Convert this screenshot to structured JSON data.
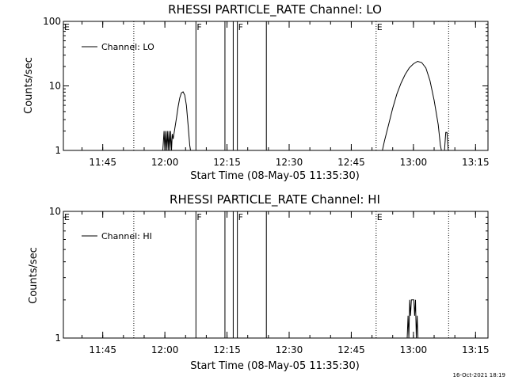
{
  "figure": {
    "timestamp": "16-Oct-2021 18:19",
    "colors": {
      "background": "#ffffff",
      "foreground": "#000000"
    }
  },
  "chart_data": [
    {
      "type": "line",
      "title": "RHESSI PARTICLE_RATE Channel: LO",
      "xlabel": "Start Time (08-May-05 11:35:30)",
      "ylabel": "Counts/sec",
      "yscale": "log",
      "ylim": [
        1,
        100
      ],
      "y_ticks": [
        {
          "v": 1,
          "label": "1"
        },
        {
          "v": 10,
          "label": "10"
        },
        {
          "v": 100,
          "label": "100"
        }
      ],
      "xlim": [
        "11:35:30",
        "13:18:00"
      ],
      "x_ticks": [
        "11:45",
        "12:00",
        "12:15",
        "12:30",
        "12:45",
        "13:00",
        "13:15"
      ],
      "legend": {
        "label": "Channel: LO",
        "placement": "top-left"
      },
      "markers": [
        {
          "label": "E",
          "time": "11:35:30",
          "style": "dotted",
          "line": false
        },
        {
          "label": "",
          "time": "11:52:30",
          "style": "dotted",
          "line": true
        },
        {
          "label": "F",
          "time": "12:07:30",
          "style": "solid",
          "line": true
        },
        {
          "label": "",
          "time": "12:14:30",
          "style": "solid",
          "line": true
        },
        {
          "label": "",
          "time": "12:16:30",
          "style": "solid",
          "line": true
        },
        {
          "label": "F",
          "time": "12:17:30",
          "style": "solid",
          "line": true
        },
        {
          "label": "",
          "time": "12:24:30",
          "style": "solid",
          "line": true
        },
        {
          "label": "E",
          "time": "12:51:00",
          "style": "dotted",
          "line": true
        },
        {
          "label": "",
          "time": "13:08:30",
          "style": "dotted",
          "line": true
        }
      ],
      "series": [
        {
          "points": [
            [
              "11:59:30",
              1
            ],
            [
              "11:59:48",
              2
            ],
            [
              "12:00:00",
              1
            ],
            [
              "12:00:12",
              2
            ],
            [
              "12:00:24",
              1
            ],
            [
              "12:00:36",
              2
            ],
            [
              "12:00:48",
              1
            ],
            [
              "12:01:00",
              2
            ],
            [
              "12:01:12",
              1
            ],
            [
              "12:01:24",
              2
            ],
            [
              "12:01:36",
              1
            ],
            [
              "12:01:48",
              1.8
            ],
            [
              "12:02:00",
              1.5
            ],
            [
              "12:02:24",
              2.2
            ],
            [
              "12:02:48",
              3.2
            ],
            [
              "12:03:12",
              4.8
            ],
            [
              "12:03:36",
              6.5
            ],
            [
              "12:04:00",
              7.8
            ],
            [
              "12:04:24",
              8.1
            ],
            [
              "12:04:48",
              7.2
            ],
            [
              "12:05:12",
              5
            ],
            [
              "12:05:36",
              2.5
            ],
            [
              "12:06:00",
              1.2
            ],
            [
              "12:06:12",
              1
            ]
          ]
        },
        {
          "points": [
            [
              "12:52:30",
              1
            ],
            [
              "12:53:00",
              1.4
            ],
            [
              "12:54:00",
              2.5
            ],
            [
              "12:55:00",
              4.5
            ],
            [
              "12:56:00",
              7.5
            ],
            [
              "12:57:00",
              11
            ],
            [
              "12:58:00",
              15
            ],
            [
              "12:59:00",
              19
            ],
            [
              "13:00:00",
              22
            ],
            [
              "13:01:00",
              24
            ],
            [
              "13:02:00",
              23
            ],
            [
              "13:03:00",
              19
            ],
            [
              "13:04:00",
              12
            ],
            [
              "13:05:00",
              6
            ],
            [
              "13:06:00",
              2.5
            ],
            [
              "13:06:30",
              1.2
            ],
            [
              "13:06:45",
              1
            ]
          ]
        },
        {
          "points": [
            [
              "13:07:30",
              1
            ],
            [
              "13:07:48",
              1.9
            ],
            [
              "13:08:06",
              1.9
            ],
            [
              "13:08:24",
              1
            ]
          ]
        }
      ]
    },
    {
      "type": "line",
      "title": "RHESSI PARTICLE_RATE Channel: HI",
      "xlabel": "Start Time (08-May-05 11:35:30)",
      "ylabel": "Counts/sec",
      "yscale": "log",
      "ylim": [
        1,
        10
      ],
      "y_ticks": [
        {
          "v": 1,
          "label": "1"
        },
        {
          "v": 10,
          "label": "10"
        }
      ],
      "xlim": [
        "11:35:30",
        "13:18:00"
      ],
      "x_ticks": [
        "11:45",
        "12:00",
        "12:15",
        "12:30",
        "12:45",
        "13:00",
        "13:15"
      ],
      "legend": {
        "label": "Channel: HI",
        "placement": "top-left"
      },
      "markers": [
        {
          "label": "E",
          "time": "11:35:30",
          "style": "dotted",
          "line": false
        },
        {
          "label": "",
          "time": "11:52:30",
          "style": "dotted",
          "line": true
        },
        {
          "label": "F",
          "time": "12:07:30",
          "style": "solid",
          "line": true
        },
        {
          "label": "",
          "time": "12:14:30",
          "style": "solid",
          "line": true
        },
        {
          "label": "",
          "time": "12:16:30",
          "style": "solid",
          "line": true
        },
        {
          "label": "F",
          "time": "12:17:30",
          "style": "solid",
          "line": true
        },
        {
          "label": "",
          "time": "12:24:30",
          "style": "solid",
          "line": true
        },
        {
          "label": "E",
          "time": "12:51:00",
          "style": "dotted",
          "line": true
        },
        {
          "label": "",
          "time": "13:08:30",
          "style": "dotted",
          "line": true
        }
      ],
      "series": [
        {
          "points": [
            [
              "12:58:30",
              1
            ],
            [
              "12:58:42",
              1.5
            ],
            [
              "12:58:54",
              1
            ],
            [
              "12:59:06",
              2
            ],
            [
              "12:59:18",
              1.5
            ],
            [
              "12:59:30",
              2
            ],
            [
              "12:59:42",
              2
            ],
            [
              "12:59:54",
              2
            ],
            [
              "13:00:06",
              2
            ],
            [
              "13:00:18",
              1.5
            ],
            [
              "13:00:30",
              2
            ],
            [
              "13:00:42",
              1
            ],
            [
              "13:00:54",
              1.5
            ],
            [
              "13:01:06",
              1
            ]
          ]
        }
      ]
    }
  ]
}
